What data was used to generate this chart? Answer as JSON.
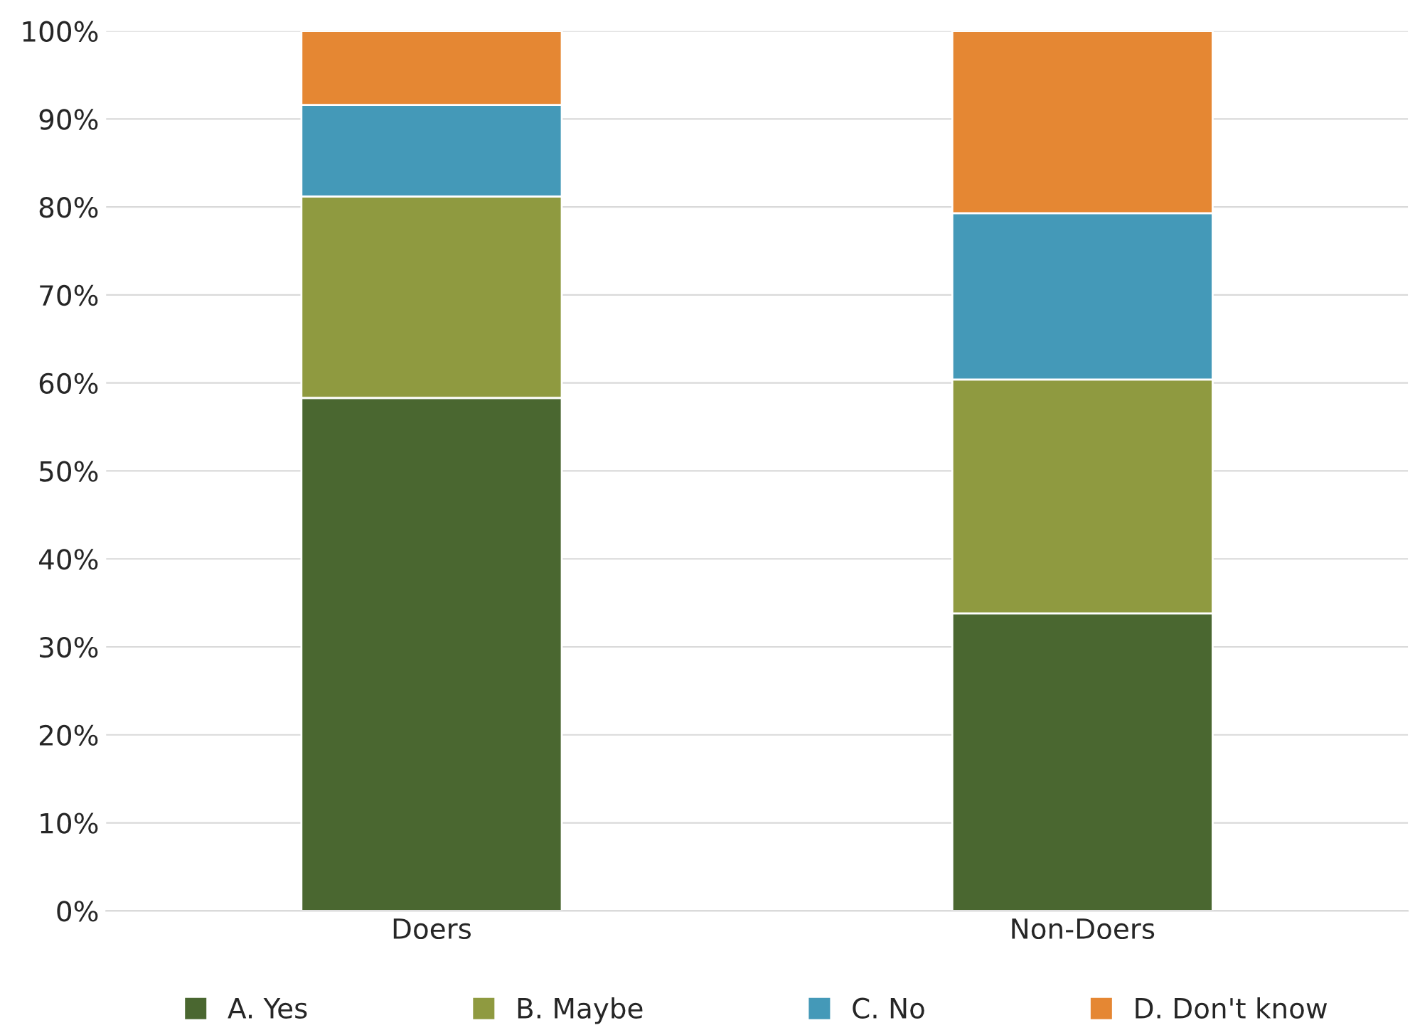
{
  "chart_data": {
    "type": "bar",
    "stacked": true,
    "categories": [
      "Doers",
      "Non-Doers"
    ],
    "series": [
      {
        "name": "A. Yes",
        "color": "#4a6730",
        "values": [
          58.3,
          33.8
        ]
      },
      {
        "name": "B. Maybe",
        "color": "#8f9a40",
        "values": [
          22.9,
          26.6
        ]
      },
      {
        "name": "C. No",
        "color": "#4499b8",
        "values": [
          10.4,
          18.9
        ]
      },
      {
        "name": "D. Don't know",
        "color": "#e58733",
        "values": [
          8.4,
          20.7
        ]
      }
    ],
    "ylim": [
      0,
      100
    ],
    "yticks": [
      {
        "value": 0,
        "label": "0%"
      },
      {
        "value": 10,
        "label": "10%"
      },
      {
        "value": 20,
        "label": "20%"
      },
      {
        "value": 30,
        "label": "30%"
      },
      {
        "value": 40,
        "label": "40%"
      },
      {
        "value": 50,
        "label": "50%"
      },
      {
        "value": 60,
        "label": "60%"
      },
      {
        "value": 70,
        "label": "70%"
      },
      {
        "value": 80,
        "label": "80%"
      },
      {
        "value": 90,
        "label": "90%"
      },
      {
        "value": 100,
        "label": "100%"
      }
    ],
    "grid": "y",
    "legend": "bottom"
  }
}
